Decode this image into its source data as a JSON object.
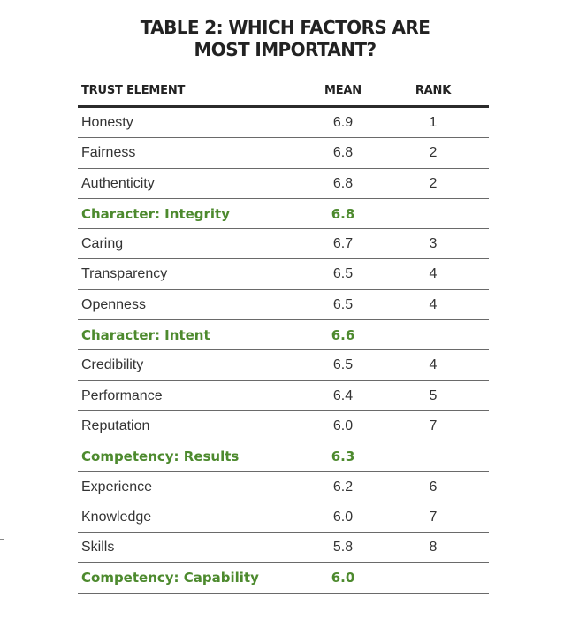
{
  "title": {
    "line1": "TABLE 2: WHICH FACTORS ARE",
    "line2": "MOST IMPORTANT?"
  },
  "columns": {
    "element": "TRUST ELEMENT",
    "mean": "MEAN",
    "rank": "RANK"
  },
  "rows": [
    {
      "name": "Honesty",
      "mean": "6.9",
      "rank": "1",
      "group": false
    },
    {
      "name": "Fairness",
      "mean": "6.8",
      "rank": "2",
      "group": false
    },
    {
      "name": "Authenticity",
      "mean": "6.8",
      "rank": "2",
      "group": false
    },
    {
      "name": "Character: Integrity",
      "mean": "6.8",
      "rank": "",
      "group": true
    },
    {
      "name": "Caring",
      "mean": "6.7",
      "rank": "3",
      "group": false
    },
    {
      "name": "Transparency",
      "mean": "6.5",
      "rank": "4",
      "group": false
    },
    {
      "name": "Openness",
      "mean": "6.5",
      "rank": "4",
      "group": false
    },
    {
      "name": "Character: Intent",
      "mean": "6.6",
      "rank": "",
      "group": true
    },
    {
      "name": "Credibility",
      "mean": "6.5",
      "rank": "4",
      "group": false
    },
    {
      "name": "Performance",
      "mean": "6.4",
      "rank": "5",
      "group": false
    },
    {
      "name": "Reputation",
      "mean": "6.0",
      "rank": "7",
      "group": false
    },
    {
      "name": "Competency: Results",
      "mean": "6.3",
      "rank": "",
      "group": true
    },
    {
      "name": "Experience",
      "mean": "6.2",
      "rank": "6",
      "group": false
    },
    {
      "name": "Knowledge",
      "mean": "6.0",
      "rank": "7",
      "group": false
    },
    {
      "name": "Skills",
      "mean": "5.8",
      "rank": "8",
      "group": false
    },
    {
      "name": "Competency: Capability",
      "mean": "6.0",
      "rank": "",
      "group": true
    }
  ],
  "colors": {
    "group_text": "#4d8a2e",
    "body_text": "#333333",
    "rule": "#2b2b2b"
  }
}
